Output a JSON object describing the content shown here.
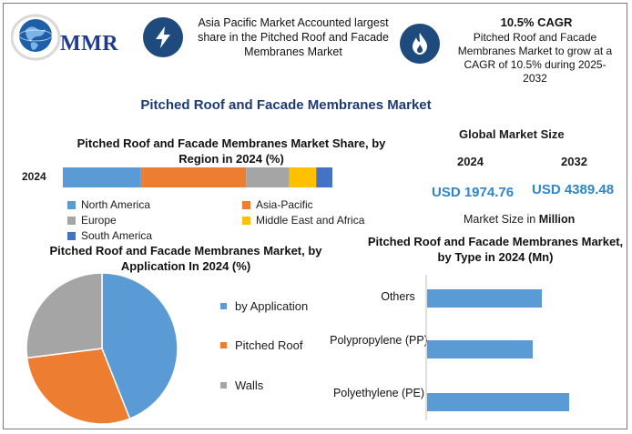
{
  "header": {
    "logo_text": "MMR",
    "callout_1": "Asia Pacific Market Accounted largest share in the Pitched Roof and Facade Membranes Market",
    "cagr_title": "10.5% CAGR",
    "cagr_text": "Pitched Roof and Facade Membranes Market to grow at a CAGR of 10.5% during 2025-2032",
    "icon_1": "lightning-icon",
    "icon_2": "flame-icon"
  },
  "main_title": "Pitched Roof and Facade Membranes Market",
  "global_market": {
    "title": "Global Market Size",
    "year_1": "2024",
    "year_2": "2032",
    "value_1": "USD 1974.76",
    "value_2": "USD 4389.48",
    "unit_prefix": "Market Size in",
    "unit_bold": "Million"
  },
  "colors": {
    "north_america": "#5b9bd5",
    "asia_pacific": "#ed7d31",
    "europe": "#a5a5a5",
    "middle_east": "#ffc000",
    "south_america": "#4472c4",
    "bar_blue": "#5b9bd5",
    "title_navy": "#1f3a73",
    "value_blue": "#2e86c9"
  },
  "chart_data": [
    {
      "type": "bar",
      "orientation": "horizontal-stacked",
      "title": "Pitched Roof and Facade Membranes Market Share, by Region in 2024 (%)",
      "categories": [
        "2024"
      ],
      "series": [
        {
          "name": "North America",
          "values": [
            29
          ]
        },
        {
          "name": "Asia-Pacific",
          "values": [
            39
          ]
        },
        {
          "name": "Europe",
          "values": [
            16
          ]
        },
        {
          "name": "Middle East and Africa",
          "values": [
            10
          ]
        },
        {
          "name": "South America",
          "values": [
            6
          ]
        }
      ],
      "xlim": [
        0,
        100
      ],
      "legend_position": "bottom"
    },
    {
      "type": "pie",
      "title": "Pitched Roof and Facade Membranes Market, by Application In 2024 (%)",
      "labels": [
        "by Application",
        "Pitched Roof",
        "Walls"
      ],
      "values": [
        44,
        29,
        27
      ],
      "legend_position": "right"
    },
    {
      "type": "bar",
      "orientation": "horizontal",
      "title": "Pitched Roof and Facade Membranes Market, by Type in 2024 (Mn)",
      "categories": [
        "Others",
        "Polypropylene (PP)",
        "Polyethylene (PE)"
      ],
      "values": [
        630,
        580,
        780
      ],
      "xlim": [
        0,
        1000
      ],
      "grid": false
    }
  ]
}
